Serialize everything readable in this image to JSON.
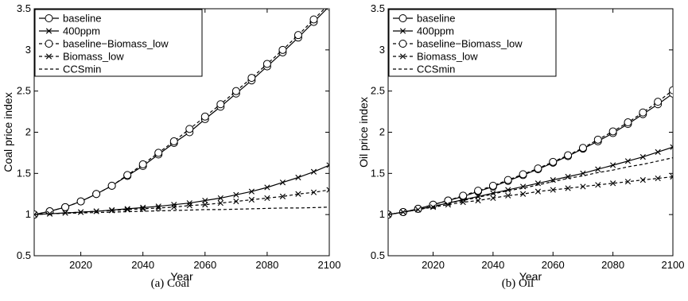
{
  "chart_data": [
    {
      "type": "line",
      "caption": "(a) Coal",
      "xlabel": "Year",
      "ylabel": "Coal price index",
      "xlim": [
        2005,
        2100
      ],
      "ylim": [
        0.5,
        3.5
      ],
      "xticks": [
        2020,
        2040,
        2060,
        2080,
        2100
      ],
      "yticks": [
        0.5,
        1,
        1.5,
        2,
        2.5,
        3,
        3.5
      ],
      "legend_position": "top-left",
      "x": [
        2005,
        2010,
        2015,
        2020,
        2025,
        2030,
        2035,
        2040,
        2045,
        2050,
        2055,
        2060,
        2065,
        2070,
        2075,
        2080,
        2085,
        2090,
        2095,
        2100
      ],
      "series": [
        {
          "name": "baseline",
          "marker": "circle",
          "dash": "solid",
          "values": [
            1.0,
            1.04,
            1.09,
            1.16,
            1.25,
            1.35,
            1.47,
            1.59,
            1.73,
            1.87,
            2.0,
            2.16,
            2.31,
            2.47,
            2.63,
            2.8,
            2.97,
            3.15,
            3.34,
            3.53
          ]
        },
        {
          "name": "400ppm",
          "marker": "x",
          "dash": "solid",
          "values": [
            1.0,
            1.01,
            1.02,
            1.03,
            1.04,
            1.055,
            1.07,
            1.085,
            1.1,
            1.12,
            1.14,
            1.17,
            1.2,
            1.24,
            1.28,
            1.33,
            1.39,
            1.45,
            1.52,
            1.6
          ]
        },
        {
          "name": "baseline−Biomass_low",
          "marker": "circle",
          "dash": "dash",
          "values": [
            1.0,
            1.04,
            1.09,
            1.16,
            1.25,
            1.35,
            1.48,
            1.61,
            1.75,
            1.89,
            2.04,
            2.19,
            2.34,
            2.5,
            2.66,
            2.83,
            3.0,
            3.18,
            3.37,
            3.56
          ]
        },
        {
          "name": "Biomass_low",
          "marker": "x",
          "dash": "dash",
          "values": [
            1.0,
            1.01,
            1.02,
            1.03,
            1.04,
            1.05,
            1.06,
            1.07,
            1.08,
            1.09,
            1.11,
            1.12,
            1.14,
            1.16,
            1.18,
            1.2,
            1.22,
            1.25,
            1.27,
            1.3
          ]
        },
        {
          "name": "CCSmin",
          "marker": "none",
          "dash": "dash",
          "values": [
            1.0,
            1.01,
            1.015,
            1.02,
            1.025,
            1.03,
            1.035,
            1.04,
            1.045,
            1.05,
            1.055,
            1.06,
            1.06,
            1.065,
            1.07,
            1.075,
            1.08,
            1.08,
            1.085,
            1.09
          ]
        }
      ]
    },
    {
      "type": "line",
      "caption": "(b) Oil",
      "xlabel": "Year",
      "ylabel": "Oil price index",
      "xlim": [
        2005,
        2100
      ],
      "ylim": [
        0.5,
        3.5
      ],
      "xticks": [
        2020,
        2040,
        2060,
        2080,
        2100
      ],
      "yticks": [
        0.5,
        1,
        1.5,
        2,
        2.5,
        3,
        3.5
      ],
      "legend_position": "top-left",
      "x": [
        2005,
        2010,
        2015,
        2020,
        2025,
        2030,
        2035,
        2040,
        2045,
        2050,
        2055,
        2060,
        2065,
        2070,
        2075,
        2080,
        2085,
        2090,
        2095,
        2100
      ],
      "series": [
        {
          "name": "baseline",
          "marker": "circle",
          "dash": "solid",
          "values": [
            1.0,
            1.03,
            1.07,
            1.12,
            1.17,
            1.22,
            1.28,
            1.34,
            1.41,
            1.48,
            1.55,
            1.63,
            1.71,
            1.8,
            1.89,
            1.99,
            2.1,
            2.22,
            2.34,
            2.47
          ]
        },
        {
          "name": "400ppm",
          "marker": "x",
          "dash": "solid",
          "values": [
            1.0,
            1.03,
            1.06,
            1.1,
            1.14,
            1.18,
            1.22,
            1.26,
            1.3,
            1.34,
            1.38,
            1.42,
            1.46,
            1.5,
            1.55,
            1.6,
            1.65,
            1.7,
            1.76,
            1.82
          ]
        },
        {
          "name": "baseline−Biomass_low",
          "marker": "circle",
          "dash": "dash",
          "values": [
            1.0,
            1.03,
            1.07,
            1.12,
            1.17,
            1.23,
            1.29,
            1.35,
            1.42,
            1.49,
            1.56,
            1.64,
            1.72,
            1.81,
            1.91,
            2.01,
            2.12,
            2.24,
            2.37,
            2.51
          ]
        },
        {
          "name": "Biomass_low",
          "marker": "x",
          "dash": "dash",
          "values": [
            1.0,
            1.03,
            1.06,
            1.09,
            1.12,
            1.15,
            1.17,
            1.2,
            1.23,
            1.25,
            1.28,
            1.3,
            1.32,
            1.34,
            1.36,
            1.38,
            1.4,
            1.42,
            1.44,
            1.46
          ]
        },
        {
          "name": "CCSmin",
          "marker": "none",
          "dash": "dash",
          "values": [
            1.0,
            1.03,
            1.06,
            1.1,
            1.14,
            1.17,
            1.21,
            1.25,
            1.29,
            1.32,
            1.36,
            1.4,
            1.44,
            1.47,
            1.51,
            1.54,
            1.58,
            1.61,
            1.65,
            1.69
          ]
        }
      ]
    }
  ]
}
